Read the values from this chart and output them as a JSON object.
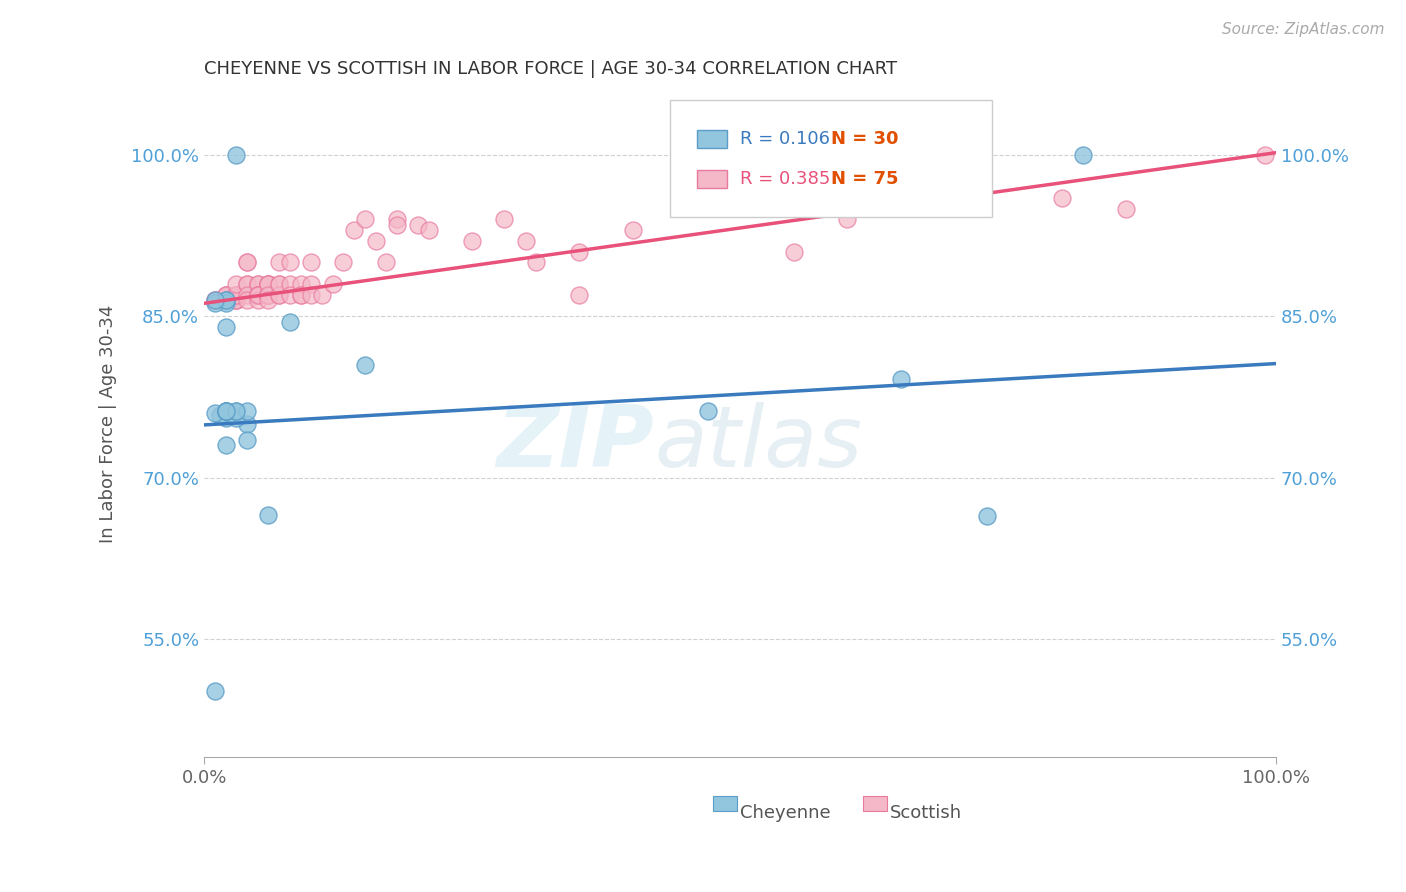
{
  "title": "CHEYENNE VS SCOTTISH IN LABOR FORCE | AGE 30-34 CORRELATION CHART",
  "source": "Source: ZipAtlas.com",
  "ylabel": "In Labor Force | Age 30-34",
  "xlim": [
    0.0,
    1.0
  ],
  "ylim": [
    0.44,
    1.06
  ],
  "yticks": [
    0.55,
    0.7,
    0.85,
    1.0
  ],
  "ytick_labels": [
    "55.0%",
    "70.0%",
    "85.0%",
    "100.0%"
  ],
  "xticks": [
    0.0,
    1.0
  ],
  "xtick_labels": [
    "0.0%",
    "100.0%"
  ],
  "watermark_zip": "ZIP",
  "watermark_atlas": "atlas",
  "legend_blue_r": "R = 0.106",
  "legend_blue_n": "N = 30",
  "legend_pink_r": "R = 0.385",
  "legend_pink_n": "N = 75",
  "cheyenne_color": "#92c5de",
  "cheyenne_edge": "#5a9dc8",
  "scottish_color": "#f4b8c8",
  "scottish_edge": "#e87aa0",
  "cheyenne_line_color": "#3a7abf",
  "scottish_line_color": "#e8527a",
  "background_color": "#ffffff",
  "grid_color": "#cccccc",
  "cheyenne_x": [
    0.02,
    0.04,
    0.06,
    0.02,
    0.03,
    0.02,
    0.02,
    0.01,
    0.015,
    0.01,
    0.02,
    0.02,
    0.01,
    0.03,
    0.02,
    0.08,
    0.04,
    0.02,
    0.02,
    0.01,
    0.15,
    0.03,
    0.04,
    0.02,
    0.02,
    0.65,
    0.73,
    0.47,
    0.82,
    0.03
  ],
  "cheyenne_y": [
    0.84,
    0.75,
    0.665,
    0.755,
    0.755,
    0.865,
    0.862,
    0.862,
    0.758,
    0.76,
    0.762,
    0.762,
    0.502,
    0.762,
    0.865,
    0.845,
    0.762,
    0.762,
    0.762,
    0.865,
    0.805,
    0.762,
    0.735,
    0.73,
    0.762,
    0.792,
    0.664,
    0.762,
    1.0,
    1.0
  ],
  "scottish_x": [
    0.01,
    0.01,
    0.02,
    0.02,
    0.02,
    0.02,
    0.02,
    0.03,
    0.03,
    0.03,
    0.03,
    0.03,
    0.03,
    0.03,
    0.03,
    0.03,
    0.04,
    0.04,
    0.04,
    0.04,
    0.04,
    0.04,
    0.05,
    0.05,
    0.05,
    0.05,
    0.05,
    0.05,
    0.05,
    0.06,
    0.06,
    0.06,
    0.06,
    0.06,
    0.06,
    0.06,
    0.06,
    0.06,
    0.07,
    0.07,
    0.07,
    0.07,
    0.07,
    0.08,
    0.08,
    0.08,
    0.09,
    0.09,
    0.09,
    0.1,
    0.1,
    0.1,
    0.11,
    0.12,
    0.13,
    0.14,
    0.15,
    0.16,
    0.17,
    0.18,
    0.18,
    0.2,
    0.21,
    0.25,
    0.28,
    0.3,
    0.31,
    0.35,
    0.35,
    0.4,
    0.55,
    0.6,
    0.8,
    0.86,
    0.99
  ],
  "scottish_y": [
    0.865,
    0.865,
    0.865,
    0.865,
    0.87,
    0.87,
    0.87,
    0.865,
    0.865,
    0.87,
    0.87,
    0.87,
    0.87,
    0.865,
    0.87,
    0.88,
    0.9,
    0.9,
    0.88,
    0.88,
    0.87,
    0.865,
    0.88,
    0.88,
    0.87,
    0.87,
    0.87,
    0.865,
    0.87,
    0.88,
    0.88,
    0.87,
    0.87,
    0.87,
    0.88,
    0.88,
    0.87,
    0.865,
    0.9,
    0.88,
    0.87,
    0.87,
    0.88,
    0.88,
    0.87,
    0.9,
    0.88,
    0.87,
    0.87,
    0.9,
    0.88,
    0.87,
    0.87,
    0.88,
    0.9,
    0.93,
    0.94,
    0.92,
    0.9,
    0.94,
    0.935,
    0.935,
    0.93,
    0.92,
    0.94,
    0.92,
    0.9,
    0.91,
    0.87,
    0.93,
    0.91,
    0.94,
    0.96,
    0.95,
    1.0
  ],
  "blue_line_x0": 0.0,
  "blue_line_x1": 1.0,
  "blue_line_y0": 0.749,
  "blue_line_y1": 0.806,
  "pink_line_x0": 0.0,
  "pink_line_x1": 1.0,
  "pink_line_y0": 0.862,
  "pink_line_y1": 1.002
}
